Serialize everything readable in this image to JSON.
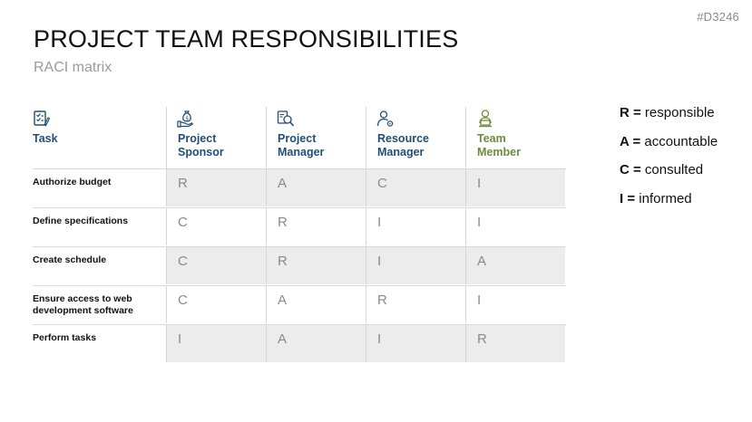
{
  "slide_id": "#D3246",
  "title": "PROJECT TEAM RESPONSIBILITIES",
  "subtitle": "RACI matrix",
  "matrix": {
    "task_header": "Task",
    "roles": [
      {
        "line1": "Project",
        "line2": "Sponsor",
        "icon": "money-bag-hand-icon",
        "color": "#1f4e79"
      },
      {
        "line1": "Project",
        "line2": "Manager",
        "icon": "magnifier-document-icon",
        "color": "#1f4e79"
      },
      {
        "line1": "Resource",
        "line2": "Manager",
        "icon": "person-gear-icon",
        "color": "#1f4e79"
      },
      {
        "line1": "Team",
        "line2": "Member",
        "icon": "person-laptop-icon",
        "color": "#6e8b3d"
      }
    ],
    "rows": [
      {
        "task_line1": "Authorize budget",
        "task_line2": "",
        "values": [
          "R",
          "A",
          "C",
          "I"
        ]
      },
      {
        "task_line1": "Define specifications",
        "task_line2": "",
        "values": [
          "C",
          "R",
          "I",
          "I"
        ]
      },
      {
        "task_line1": "Create schedule",
        "task_line2": "",
        "values": [
          "C",
          "R",
          "I",
          "A"
        ]
      },
      {
        "task_line1": "Ensure access to web",
        "task_line2": "development software",
        "values": [
          "C",
          "A",
          "R",
          "I"
        ]
      },
      {
        "task_line1": "Perform tasks",
        "task_line2": "",
        "values": [
          "I",
          "A",
          "I",
          "R"
        ]
      }
    ]
  },
  "legend": [
    {
      "key": "R =",
      "text": " responsible"
    },
    {
      "key": "A =",
      "text": " accountable"
    },
    {
      "key": "C =",
      "text": " consulted"
    },
    {
      "key": "I =",
      "text": " informed"
    }
  ]
}
